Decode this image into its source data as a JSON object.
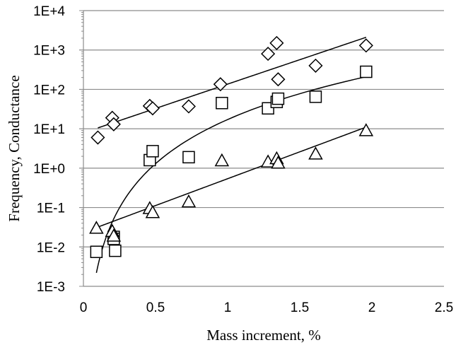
{
  "chart_data": {
    "type": "scatter",
    "title": "",
    "xlabel": "Mass increment, %",
    "ylabel": "Frequency, Conductance",
    "xlim": [
      0,
      2.5
    ],
    "ylim": [
      0.001,
      10000
    ],
    "yscale": "log",
    "grid": "horizontal major gridlines",
    "legend": "none",
    "x_ticks": [
      "0",
      "0.5",
      "1",
      "1.5",
      "2",
      "2.5"
    ],
    "x_tick_values": [
      0,
      0.5,
      1,
      1.5,
      2,
      2.5
    ],
    "y_ticks": [
      "1E-3",
      "1E-2",
      "1E-1",
      "1E+0",
      "1E+1",
      "1E+2",
      "1E+3",
      "1E+4"
    ],
    "y_tick_values": [
      0.001,
      0.01,
      0.1,
      1,
      10,
      100,
      1000,
      10000
    ],
    "series": [
      {
        "marker": "diamond",
        "x": [
          0.1,
          0.2,
          0.21,
          0.46,
          0.48,
          0.73,
          0.95,
          1.28,
          1.34,
          1.35,
          1.61,
          1.96
        ],
        "y": [
          6,
          19,
          13,
          38,
          33,
          37,
          135,
          800,
          1500,
          180,
          400,
          1300
        ],
        "trendline": {
          "kind": "exponential",
          "from": 0.1,
          "to": 1.96,
          "y_start": 10.5,
          "y_end": 2100
        }
      },
      {
        "marker": "square",
        "x": [
          0.09,
          0.21,
          0.21,
          0.22,
          0.46,
          0.48,
          0.73,
          0.96,
          1.28,
          1.34,
          1.35,
          1.61,
          1.96
        ],
        "y": [
          0.0075,
          0.018,
          0.016,
          0.008,
          1.6,
          2.7,
          1.9,
          45,
          33,
          48,
          58,
          65,
          280
        ],
        "trendline": {
          "kind": "power",
          "from": 0.09,
          "to": 1.96,
          "y_start": 0.0022,
          "y_end": 210
        }
      },
      {
        "marker": "triangle",
        "x": [
          0.09,
          0.2,
          0.21,
          0.46,
          0.48,
          0.73,
          0.96,
          1.28,
          1.34,
          1.35,
          1.61,
          1.96
        ],
        "y": [
          0.03,
          0.025,
          0.019,
          0.095,
          0.075,
          0.14,
          1.55,
          1.45,
          1.75,
          1.35,
          2.3,
          9
        ],
        "trendline": {
          "kind": "exponential",
          "from": 0.09,
          "to": 1.96,
          "y_start": 0.031,
          "y_end": 11
        }
      }
    ]
  }
}
